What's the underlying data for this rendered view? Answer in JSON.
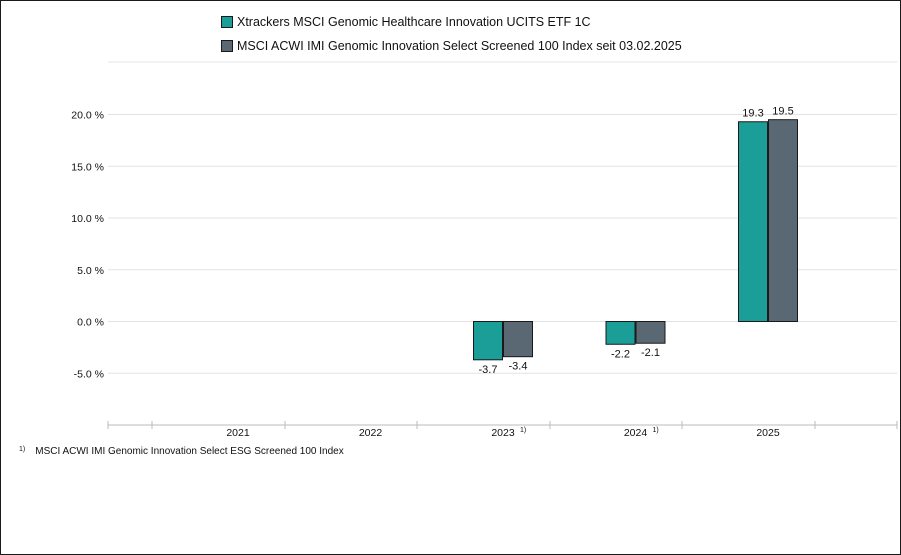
{
  "legend": {
    "items": [
      {
        "label": "Xtrackers MSCI Genomic Healthcare Innovation UCITS ETF 1C",
        "color": "#1a9e97"
      },
      {
        "label": "MSCI ACWI IMI Genomic Innovation Select Screened 100 Index seit 03.02.2025",
        "color": "#5a6873"
      }
    ]
  },
  "footnote": {
    "marker": "1)",
    "text": "MSCI ACWI IMI Genomic Innovation Select ESG Screened 100 Index"
  },
  "chart_data": {
    "type": "bar",
    "categories": [
      "2021",
      "2022",
      "2023",
      "2024",
      "2025"
    ],
    "category_footnotes": [
      "",
      "",
      "1)",
      "1)",
      ""
    ],
    "series": [
      {
        "name": "Xtrackers MSCI Genomic Healthcare Innovation UCITS ETF 1C",
        "color": "#1a9e97",
        "values": [
          null,
          null,
          -3.7,
          -2.2,
          19.3
        ]
      },
      {
        "name": "MSCI ACWI IMI Genomic Innovation Select Screened 100 Index seit 03.02.2025",
        "color": "#5a6873",
        "values": [
          null,
          null,
          -3.4,
          -2.1,
          19.5
        ]
      }
    ],
    "data_labels": [
      [
        null,
        null,
        "-3.7",
        "-2.2",
        "19.3"
      ],
      [
        null,
        null,
        "-3.4",
        "-2.1",
        "19.5"
      ]
    ],
    "yticks": [
      20,
      15,
      10,
      5,
      0,
      -5
    ],
    "ytick_labels": [
      "20.0 %",
      "15.0 %",
      "10.0 %",
      "5.0 %",
      "0.0 %",
      "-5.0 %"
    ],
    "ylim": [
      -10,
      25
    ],
    "grid": true,
    "legend_position": "top"
  }
}
